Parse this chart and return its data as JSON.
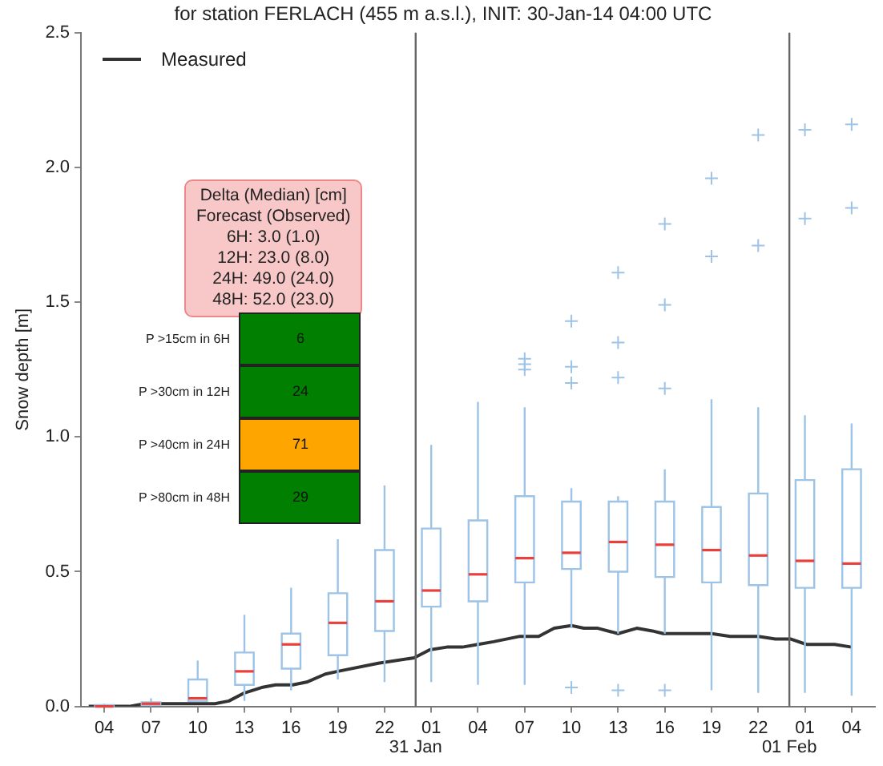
{
  "chart_data": [
    {
      "type": "box",
      "title": "for station FERLACH (455 m a.s.l.), INIT: 30-Jan-14 04:00 UTC",
      "ylabel": "Snow depth [m]",
      "xlim": [
        "--01-30T02:30",
        "--02-01T05:30"
      ],
      "xticks": [
        {
          "value": "--01-30T04:00",
          "label": "04"
        },
        {
          "value": "--01-30T07:00",
          "label": "07"
        },
        {
          "value": "--01-30T10:00",
          "label": "10"
        },
        {
          "value": "--01-30T13:00",
          "label": "13"
        },
        {
          "value": "--01-30T16:00",
          "label": "16"
        },
        {
          "value": "--01-30T19:00",
          "label": "19"
        },
        {
          "value": "--01-30T22:00",
          "label": "22"
        },
        {
          "value": "--01-31T01:00",
          "label": "01"
        },
        {
          "value": "--01-31T04:00",
          "label": "04"
        },
        {
          "value": "--01-31T07:00",
          "label": "07"
        },
        {
          "value": "--01-31T10:00",
          "label": "10"
        },
        {
          "value": "--01-31T13:00",
          "label": "13"
        },
        {
          "value": "--01-31T16:00",
          "label": "16"
        },
        {
          "value": "--01-31T19:00",
          "label": "19"
        },
        {
          "value": "--01-31T22:00",
          "label": "22"
        },
        {
          "value": "--02-01T01:00",
          "label": "01"
        },
        {
          "value": "--02-01T04:00",
          "label": "04"
        }
      ],
      "ylim": [
        0,
        2.5
      ],
      "yticks": [
        {
          "value": 0,
          "label": "0.0"
        },
        {
          "value": 0.5,
          "label": "0.5"
        },
        {
          "value": 1,
          "label": "1.0"
        },
        {
          "value": 1.5,
          "label": "1.5"
        },
        {
          "value": 2,
          "label": "2.0"
        },
        {
          "value": 2.5,
          "label": "2.5"
        }
      ],
      "grid": false,
      "legend": "top left",
      "ref_lines": [
        {
          "axis": "x",
          "value": "--01-31",
          "label": "31 Jan",
          "color": "#666666"
        },
        {
          "axis": "x",
          "value": "--02-01",
          "label": "01 Feb",
          "color": "#666666"
        }
      ],
      "annotations": [
        "Delta (Median) [cm]\nForecast (Observed)\n6H: 3.0 (1.0)\n12H: 23.0 (8.0)\n24H: 49.0 (24.0)\n48H: 52.0 (23.0)"
      ],
      "series": [
        {
          "type": "box",
          "color": "#9dc3e6",
          "x": [
            "--01-30T04:00",
            "--01-30T07:00",
            "--01-30T10:00",
            "--01-30T13:00",
            "--01-30T16:00",
            "--01-30T19:00",
            "--01-30T22:00",
            "--01-31T01:00",
            "--01-31T04:00",
            "--01-31T07:00",
            "--01-31T10:00",
            "--01-31T13:00",
            "--01-31T16:00",
            "--01-31T19:00",
            "--01-31T22:00",
            "--02-01T01:00",
            "--02-01T04:00"
          ],
          "boxes": [
            {
              "low": 0,
              "q1": 0,
              "median": 0,
              "q3": 0.005,
              "high": 0.01
            },
            {
              "low": 0,
              "q1": 0.005,
              "median": 0.01,
              "q3": 0.015,
              "high": 0.03
            },
            {
              "low": 0.02,
              "q1": 0.02,
              "median": 0.03,
              "q3": 0.1,
              "high": 0.17
            },
            {
              "low": 0.02,
              "q1": 0.08,
              "median": 0.13,
              "q3": 0.2,
              "high": 0.34
            },
            {
              "low": 0.06,
              "q1": 0.14,
              "median": 0.23,
              "q3": 0.27,
              "high": 0.44
            },
            {
              "low": 0.1,
              "q1": 0.19,
              "median": 0.31,
              "q3": 0.42,
              "high": 0.62
            },
            {
              "low": 0.09,
              "q1": 0.28,
              "median": 0.39,
              "q3": 0.58,
              "high": 0.82
            },
            {
              "low": 0.09,
              "q1": 0.37,
              "median": 0.43,
              "q3": 0.66,
              "high": 0.97
            },
            {
              "low": 0.08,
              "q1": 0.39,
              "median": 0.49,
              "q3": 0.69,
              "high": 1.13
            },
            {
              "low": 0.08,
              "q1": 0.46,
              "median": 0.55,
              "q3": 0.78,
              "high": 1.11,
              "outliers": [
                1.25,
                1.27,
                1.29
              ]
            },
            {
              "low": 0.29,
              "q1": 0.51,
              "median": 0.57,
              "q3": 0.76,
              "high": 0.81,
              "outliers": [
                0.07,
                1.2,
                1.26,
                1.43
              ]
            },
            {
              "low": 0.27,
              "q1": 0.5,
              "median": 0.61,
              "q3": 0.76,
              "high": 0.78,
              "outliers": [
                0.06,
                1.22,
                1.35,
                1.61
              ]
            },
            {
              "low": 0.27,
              "q1": 0.48,
              "median": 0.6,
              "q3": 0.76,
              "high": 0.88,
              "outliers": [
                0.06,
                1.18,
                1.49,
                1.79
              ]
            },
            {
              "low": 0.06,
              "q1": 0.46,
              "median": 0.58,
              "q3": 0.74,
              "high": 1.14,
              "outliers": [
                1.67,
                1.96
              ]
            },
            {
              "low": 0.05,
              "q1": 0.45,
              "median": 0.56,
              "q3": 0.79,
              "high": 1.11,
              "outliers": [
                1.71,
                2.12
              ]
            },
            {
              "low": 0.05,
              "q1": 0.44,
              "median": 0.54,
              "q3": 0.84,
              "high": 1.08,
              "outliers": [
                1.81,
                2.14
              ]
            },
            {
              "low": 0.04,
              "q1": 0.44,
              "median": 0.53,
              "q3": 0.88,
              "high": 1.05,
              "outliers": [
                1.85,
                2.16
              ]
            }
          ]
        },
        {
          "type": "line",
          "name": "Measured",
          "color": "#333333",
          "x": [
            "--01-30T03:00",
            "--01-30T05:36",
            "--01-30T06:36",
            "--01-30T11:06",
            "--01-30T12:00",
            "--01-30T13:00",
            "--01-30T14:06",
            "--01-30T15:00",
            "--01-30T16:06",
            "--01-30T17:00",
            "--01-30T18:12",
            "--01-30T19:00",
            "--01-30T21:36",
            "--01-30T23:54",
            "--01-31T00:54",
            "--01-31T02:00",
            "--01-31T03:00",
            "--01-31T04:00",
            "--01-31T05:00",
            "--01-31T06:42",
            "--01-31T07:54",
            "--01-31T08:54",
            "--01-31T10:00",
            "--01-31T10:48",
            "--01-31T11:42",
            "--01-31T13:00",
            "--01-31T14:12",
            "--01-31T15:12",
            "--01-31T15:54",
            "--01-31T17:06",
            "--01-31T19:00",
            "--01-31T20:12",
            "--01-31T22:00",
            "--01-31T23:06",
            "--02-01T00:06",
            "--02-01T01:06",
            "--02-01T02:54",
            "--02-01T04:00"
          ],
          "values": [
            0,
            0,
            0.01,
            0.01,
            0.02,
            0.05,
            0.07,
            0.08,
            0.08,
            0.09,
            0.12,
            0.13,
            0.16,
            0.18,
            0.21,
            0.22,
            0.22,
            0.23,
            0.24,
            0.26,
            0.26,
            0.29,
            0.3,
            0.29,
            0.29,
            0.27,
            0.29,
            0.28,
            0.27,
            0.27,
            0.27,
            0.26,
            0.26,
            0.25,
            0.25,
            0.23,
            0.23,
            0.22
          ]
        }
      ]
    },
    {
      "type": "other",
      "categories": [
        "P >15cm in 6H",
        "P >30cm in 12H",
        "P >40cm in 24H",
        "P >80cm in 48H"
      ],
      "values": [
        6,
        24,
        71,
        29
      ],
      "colors": [
        "#007f00",
        "#007f00",
        "#ffa500",
        "#007f00"
      ],
      "data_labels": true
    }
  ]
}
